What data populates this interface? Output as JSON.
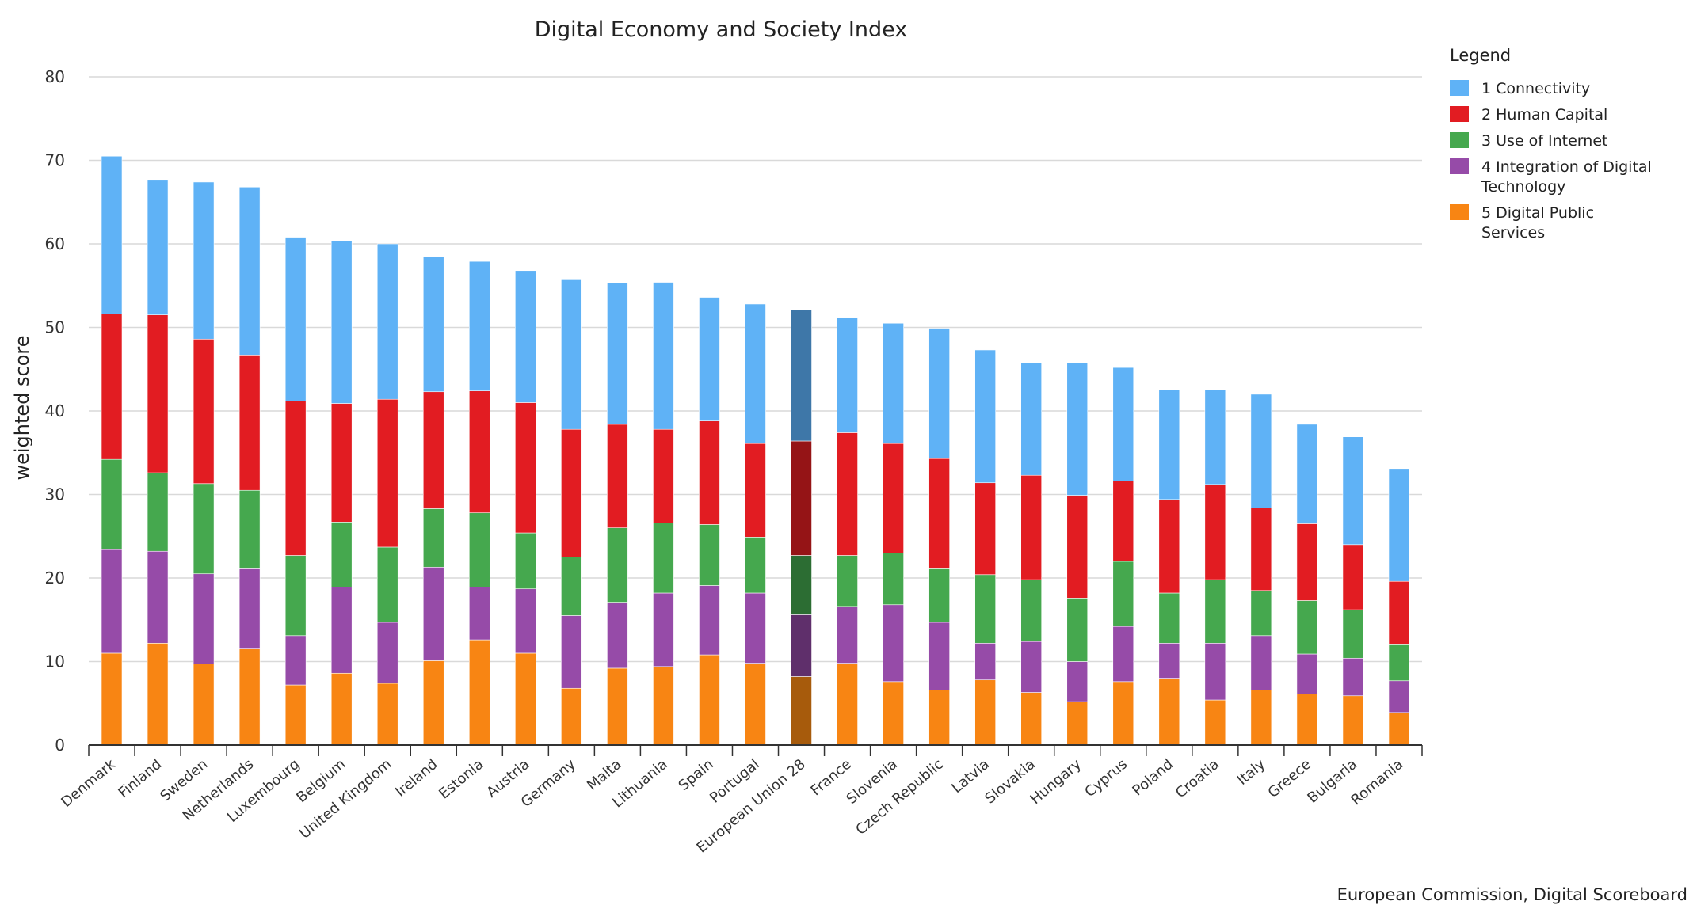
{
  "chart_data": {
    "type": "bar",
    "stacked": true,
    "title": "Digital Economy and Society Index",
    "xlabel": "",
    "ylabel": "weighted score",
    "ylim": [
      0,
      80
    ],
    "yticks": [
      0,
      10,
      20,
      30,
      40,
      50,
      60,
      70,
      80
    ],
    "grid": true,
    "legend_title": "Legend",
    "legend_position": "right",
    "credit": "European Commission, Digital Scoreboard",
    "highlight_category": "European Union 28",
    "categories": [
      "Denmark",
      "Finland",
      "Sweden",
      "Netherlands",
      "Luxembourg",
      "Belgium",
      "United Kingdom",
      "Ireland",
      "Estonia",
      "Austria",
      "Germany",
      "Malta",
      "Lithuania",
      "Spain",
      "Portugal",
      "European Union 28",
      "France",
      "Slovenia",
      "Czech Republic",
      "Latvia",
      "Slovakia",
      "Hungary",
      "Cyprus",
      "Poland",
      "Croatia",
      "Italy",
      "Greece",
      "Bulgaria",
      "Romania"
    ],
    "series": [
      {
        "name": "5 Digital Public Services",
        "color": "#f88513",
        "highlight_color": "#a75b0c",
        "values": [
          11.0,
          12.2,
          9.7,
          11.5,
          7.2,
          8.6,
          7.4,
          10.1,
          12.6,
          11.0,
          6.8,
          9.2,
          9.4,
          10.8,
          9.8,
          8.2,
          9.8,
          7.6,
          6.6,
          7.8,
          6.3,
          5.2,
          7.6,
          8.0,
          5.4,
          6.6,
          6.1,
          5.9,
          3.9
        ]
      },
      {
        "name": "4 Integration of Digital Technology",
        "color": "#964ba8",
        "highlight_color": "#5f2f6b",
        "values": [
          12.4,
          11.0,
          10.8,
          9.6,
          5.9,
          10.3,
          7.3,
          11.2,
          6.3,
          7.7,
          8.7,
          7.9,
          8.8,
          8.3,
          8.4,
          7.4,
          6.8,
          9.2,
          8.1,
          4.4,
          6.1,
          4.8,
          6.6,
          4.2,
          6.8,
          6.5,
          4.8,
          4.5,
          3.8
        ]
      },
      {
        "name": "3 Use of Internet",
        "color": "#45a84e",
        "highlight_color": "#2c6d33",
        "values": [
          10.8,
          9.4,
          10.8,
          9.4,
          9.6,
          7.8,
          9.0,
          7.0,
          8.9,
          6.7,
          7.0,
          8.9,
          8.4,
          7.3,
          6.7,
          7.1,
          6.1,
          6.2,
          6.4,
          8.2,
          7.4,
          7.6,
          7.8,
          6.0,
          7.6,
          5.4,
          6.4,
          5.8,
          4.4
        ]
      },
      {
        "name": "2 Human Capital",
        "color": "#e21c22",
        "highlight_color": "#951416",
        "values": [
          17.4,
          18.9,
          17.3,
          16.2,
          18.5,
          14.2,
          17.7,
          14.0,
          14.6,
          15.6,
          15.3,
          12.4,
          11.2,
          12.4,
          11.2,
          13.7,
          14.7,
          13.1,
          13.2,
          11.0,
          12.5,
          12.3,
          9.6,
          11.2,
          11.4,
          9.9,
          9.2,
          7.8,
          7.5
        ]
      },
      {
        "name": "1 Connectivity",
        "color": "#5fb2f6",
        "highlight_color": "#3e77a8",
        "values": [
          18.9,
          16.2,
          18.8,
          20.1,
          19.6,
          19.5,
          18.6,
          16.2,
          15.5,
          15.8,
          17.9,
          16.9,
          17.6,
          14.8,
          16.7,
          15.7,
          13.8,
          14.4,
          15.6,
          15.9,
          13.5,
          15.9,
          13.6,
          13.1,
          11.3,
          13.6,
          11.9,
          12.9,
          13.5
        ]
      }
    ]
  }
}
